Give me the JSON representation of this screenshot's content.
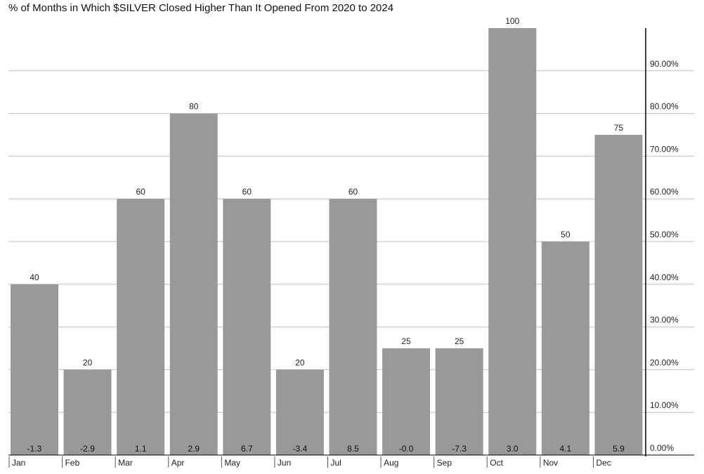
{
  "chart_data": {
    "type": "bar",
    "title": "% of Months in Which $SILVER Closed Higher Than It Opened From 2020 to 2024",
    "categories": [
      "Jan",
      "Feb",
      "Mar",
      "Apr",
      "May",
      "Jun",
      "Jul",
      "Aug",
      "Sep",
      "Oct",
      "Nov",
      "Dec"
    ],
    "values": [
      40,
      20,
      60,
      80,
      60,
      20,
      60,
      25,
      25,
      100,
      50,
      75
    ],
    "value_labels": [
      "40",
      "20",
      "60",
      "80",
      "60",
      "20",
      "60",
      "25",
      "25",
      "100",
      "50",
      "75"
    ],
    "secondary_labels": [
      "-1.3",
      "-2.9",
      "1.1",
      "2.9",
      "6.7",
      "-3.4",
      "8.5",
      "-0.0",
      "-7.3",
      "3.0",
      "4.1",
      "5.9"
    ],
    "y_ticks": [
      "0.00%",
      "10.00%",
      "20.00%",
      "30.00%",
      "40.00%",
      "50.00%",
      "60.00%",
      "70.00%",
      "80.00%",
      "90.00%"
    ],
    "ylim": [
      0,
      100
    ],
    "y_axis_side": "right",
    "grid": true,
    "colors": {
      "bar": "#999999",
      "grid": "#c0c0c0",
      "axis": "#000000",
      "text": "#222222"
    }
  }
}
